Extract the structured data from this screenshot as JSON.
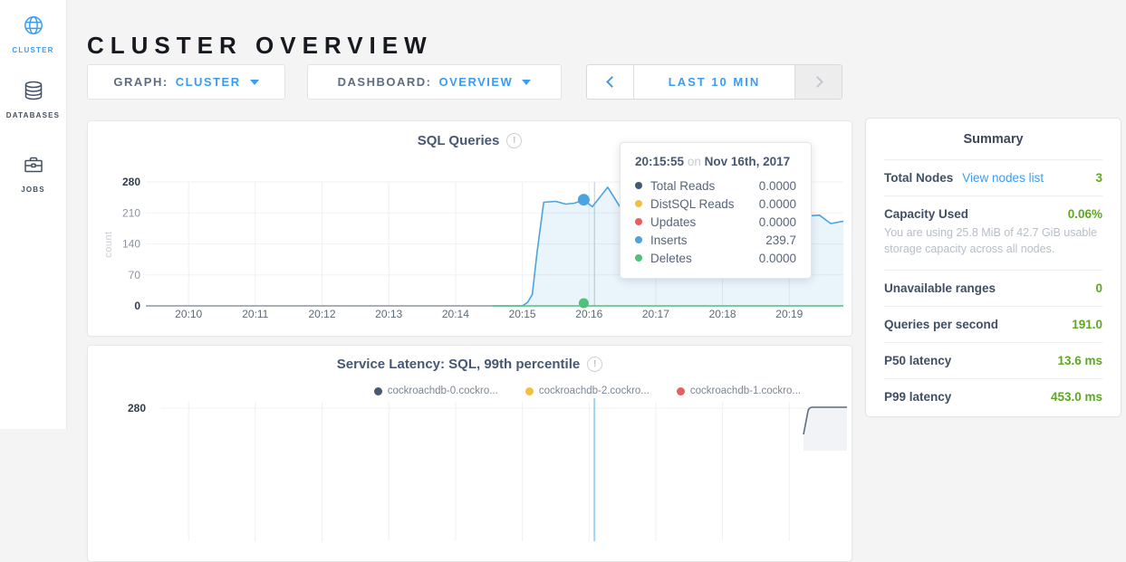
{
  "sidebar": {
    "items": [
      {
        "label": "CLUSTER",
        "icon": "globe-icon",
        "active": true
      },
      {
        "label": "DATABASES",
        "icon": "database-icon",
        "active": false
      },
      {
        "label": "JOBS",
        "icon": "briefcase-icon",
        "active": false
      }
    ]
  },
  "header": {
    "title": "CLUSTER OVERVIEW"
  },
  "controls": {
    "graph": {
      "label": "GRAPH:",
      "value": "CLUSTER"
    },
    "dashboard": {
      "label": "DASHBOARD:",
      "value": "OVERVIEW"
    },
    "timewindow": {
      "label": "LAST 10 MIN"
    }
  },
  "colors": {
    "accent_blue": "#3a9cf4",
    "value_green": "#5ea722",
    "slate": "#475872",
    "series_navy": "#475872",
    "series_yellow": "#f2bf43",
    "series_red": "#ea5e60",
    "series_blue": "#4da3dd",
    "series_green": "#4ec17a"
  },
  "chart_data": [
    {
      "type": "area",
      "title": "SQL Queries",
      "ylabel": "count",
      "ylim": [
        0,
        280
      ],
      "yticks": [
        0,
        70,
        140,
        210,
        280
      ],
      "x_domain_min": [
        -0.64,
        9.81
      ],
      "x_ticks": [
        {
          "label": "20:10",
          "min": 0
        },
        {
          "label": "20:11",
          "min": 1
        },
        {
          "label": "20:12",
          "min": 2
        },
        {
          "label": "20:13",
          "min": 3
        },
        {
          "label": "20:14",
          "min": 4
        },
        {
          "label": "20:15",
          "min": 5
        },
        {
          "label": "20:16",
          "min": 6
        },
        {
          "label": "20:17",
          "min": 7
        },
        {
          "label": "20:18",
          "min": 8
        },
        {
          "label": "20:19",
          "min": 9
        }
      ],
      "grid": true,
      "legend_position": "none",
      "series": [
        {
          "name": "Inserts",
          "color": "#4da3dd",
          "fill": "rgba(77,163,221,0.12)",
          "points": [
            [
              4.55,
              0
            ],
            [
              5.0,
              0
            ],
            [
              5.08,
              8
            ],
            [
              5.15,
              26
            ],
            [
              5.22,
              120
            ],
            [
              5.32,
              234
            ],
            [
              5.5,
              236
            ],
            [
              5.65,
              230
            ],
            [
              5.78,
              232
            ],
            [
              5.92,
              239.7
            ],
            [
              6.05,
              224
            ],
            [
              6.28,
              268
            ],
            [
              6.5,
              215
            ],
            [
              6.7,
              225
            ],
            [
              7.2,
              210
            ],
            [
              8.0,
              208
            ],
            [
              9.0,
              200
            ],
            [
              9.45,
              205
            ],
            [
              9.62,
              186
            ],
            [
              9.81,
              191
            ]
          ]
        },
        {
          "name": "Deletes",
          "color": "#4ec17a",
          "fill": null,
          "points": [
            [
              4.55,
              0
            ],
            [
              9.81,
              0
            ]
          ]
        }
      ],
      "hover": {
        "guideline_x_min": 6.08,
        "dots": [
          {
            "x": 5.92,
            "y": 239.7,
            "color": "#4da3dd",
            "r": 6.5,
            "lift": 0
          },
          {
            "x": 5.92,
            "y": 0,
            "color": "#4ec17a",
            "r": 5.5,
            "lift": 3
          }
        ]
      }
    },
    {
      "type": "line",
      "title": "Service Latency: SQL, 99th percentile",
      "visible_ytick": 280,
      "x_ticks_same_as_first": true,
      "legend_position": "top-right",
      "legend": [
        {
          "label": "cockroachdb-0.cockro...",
          "color": "#475872"
        },
        {
          "label": "cockroachdb-2.cockro...",
          "color": "#f2bf43"
        },
        {
          "label": "cockroachdb-1.cockro...",
          "color": "#ea5e60"
        }
      ],
      "guideline_x_min": 6.08,
      "partial_series": {
        "color": "#5b6c84",
        "spike_x_min": 9.24
      }
    }
  ],
  "tooltip": {
    "time": "20:15:55",
    "conj": "on",
    "date": "Nov 16th, 2017",
    "rows": [
      {
        "name": "Total Reads",
        "value": "0.0000",
        "color": "#475872"
      },
      {
        "name": "DistSQL Reads",
        "value": "0.0000",
        "color": "#f2bf43"
      },
      {
        "name": "Updates",
        "value": "0.0000",
        "color": "#ea5e60"
      },
      {
        "name": "Inserts",
        "value": "239.7",
        "color": "#4da3dd"
      },
      {
        "name": "Deletes",
        "value": "0.0000",
        "color": "#4ec17a"
      }
    ]
  },
  "summary": {
    "title": "Summary",
    "rows": [
      {
        "label": "Total Nodes",
        "link": "View nodes list",
        "value": "3"
      },
      {
        "label": "Capacity Used",
        "value": "0.06%",
        "subtext": "You are using 25.8 MiB of 42.7 GiB usable storage capacity across all nodes."
      },
      {
        "label": "Unavailable ranges",
        "value": "0"
      },
      {
        "label": "Queries per second",
        "value": "191.0"
      },
      {
        "label": "P50 latency",
        "value": "13.6 ms"
      },
      {
        "label": "P99 latency",
        "value": "453.0 ms"
      }
    ]
  }
}
